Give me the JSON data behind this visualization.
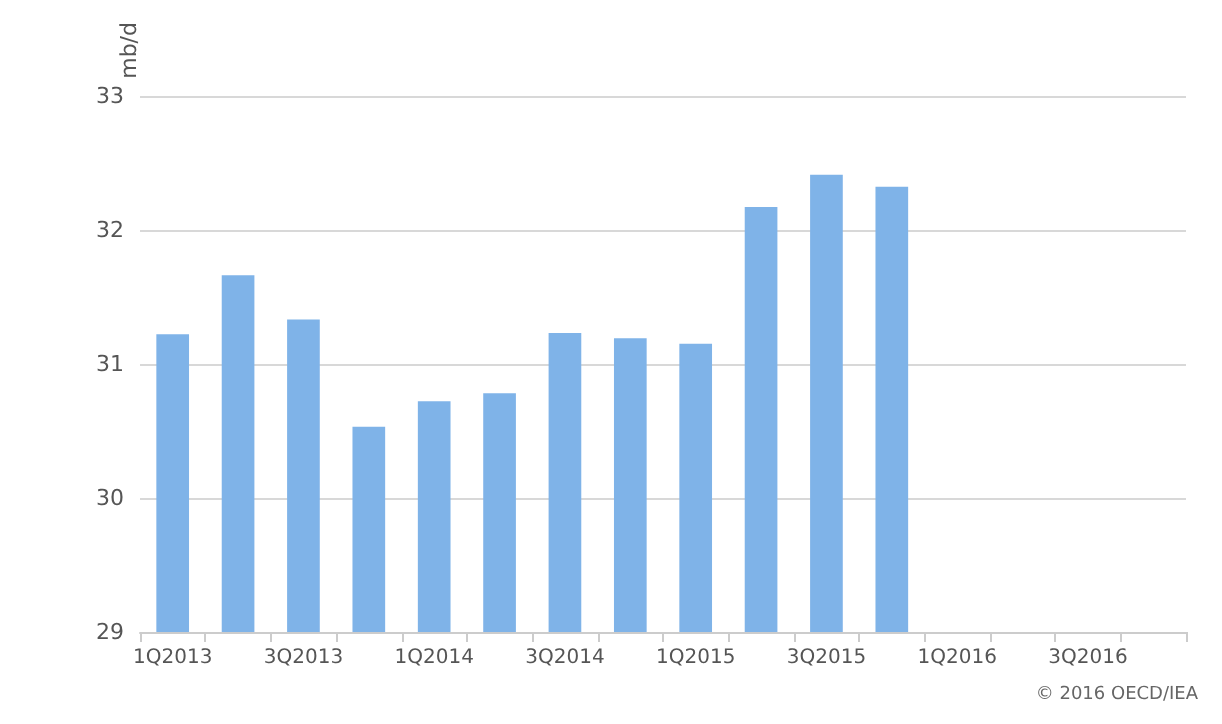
{
  "chart_data": {
    "type": "bar",
    "ylabel": "mb/d",
    "categories": [
      "1Q2013",
      null,
      "3Q2013",
      null,
      "1Q2014",
      null,
      "3Q2014",
      null,
      "1Q2015",
      null,
      "3Q2015",
      null,
      "1Q2016",
      null,
      "3Q2016",
      null
    ],
    "values": [
      31.22,
      31.66,
      31.33,
      30.53,
      30.72,
      30.78,
      31.23,
      31.19,
      31.15,
      32.17,
      32.41,
      32.32,
      null,
      null,
      null,
      null
    ],
    "color": "#7fb3e8",
    "ylim": [
      29,
      33
    ],
    "yticks": [
      29,
      30,
      31,
      32,
      33
    ],
    "grid": "y",
    "annotations": [
      "© 2016 OECD/IEA"
    ]
  }
}
